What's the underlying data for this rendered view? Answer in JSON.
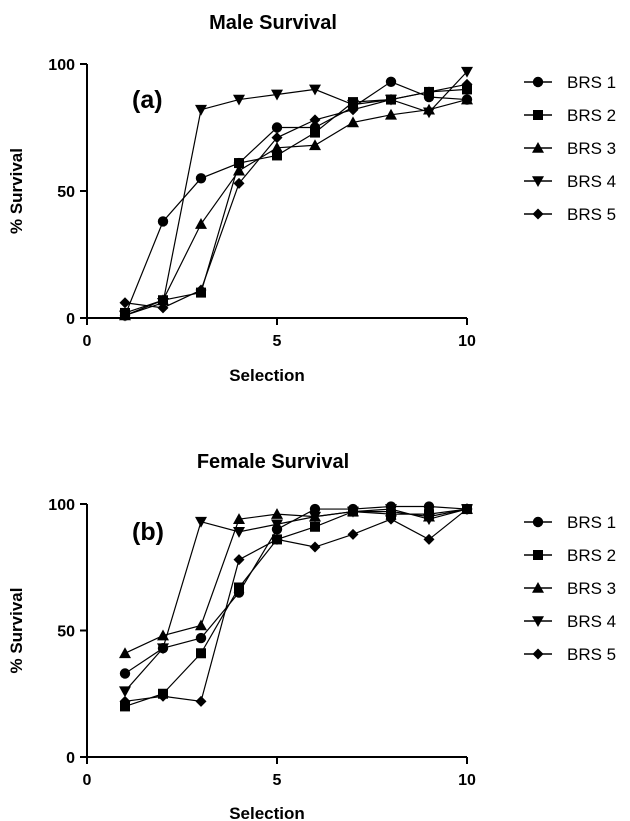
{
  "chart_data": [
    {
      "type": "line",
      "title": "Male Survival",
      "panel_label": "(a)",
      "xlabel": "Selection",
      "ylabel": "% Survival",
      "xlim": [
        0,
        10
      ],
      "ylim": [
        0,
        100
      ],
      "xticks": [
        0,
        5,
        10
      ],
      "yticks": [
        0,
        50,
        100
      ],
      "grid": false,
      "legend_position": "right",
      "x": [
        1,
        2,
        3,
        4,
        5,
        6,
        7,
        8,
        9,
        10
      ],
      "series": [
        {
          "name": "BRS 1",
          "marker": "circle",
          "values": [
            1,
            38,
            55,
            61,
            75,
            75,
            83,
            93,
            87,
            86
          ]
        },
        {
          "name": "BRS 2",
          "marker": "square",
          "values": [
            2,
            7,
            10,
            61,
            64,
            73,
            85,
            86,
            89,
            90
          ]
        },
        {
          "name": "BRS 3",
          "marker": "triangle-up",
          "values": [
            1,
            7,
            37,
            58,
            67,
            68,
            77,
            80,
            82,
            86
          ]
        },
        {
          "name": "BRS 4",
          "marker": "triangle-down",
          "values": [
            1,
            6,
            82,
            86,
            88,
            90,
            84,
            86,
            81,
            97
          ]
        },
        {
          "name": "BRS 5",
          "marker": "diamond",
          "values": [
            6,
            4,
            11,
            53,
            71,
            78,
            82,
            86,
            89,
            92
          ]
        }
      ]
    },
    {
      "type": "line",
      "title": "Female Survival",
      "panel_label": "(b)",
      "xlabel": "Selection",
      "ylabel": "% Survival",
      "xlim": [
        0,
        10
      ],
      "ylim": [
        0,
        100
      ],
      "xticks": [
        0,
        5,
        10
      ],
      "yticks": [
        0,
        50,
        100
      ],
      "grid": false,
      "legend_position": "right",
      "x": [
        1,
        2,
        3,
        4,
        5,
        6,
        7,
        8,
        9,
        10
      ],
      "series": [
        {
          "name": "BRS 1",
          "marker": "circle",
          "values": [
            33,
            43,
            47,
            65,
            90,
            98,
            98,
            99,
            99,
            98
          ]
        },
        {
          "name": "BRS 2",
          "marker": "square",
          "values": [
            20,
            25,
            41,
            67,
            86,
            91,
            97,
            96,
            96,
            98
          ]
        },
        {
          "name": "BRS 3",
          "marker": "triangle-up",
          "values": [
            41,
            48,
            52,
            94,
            96,
            95,
            97,
            97,
            95,
            98
          ]
        },
        {
          "name": "BRS 4",
          "marker": "triangle-down",
          "values": [
            26,
            43,
            93,
            89,
            92,
            95,
            97,
            98,
            94,
            98
          ]
        },
        {
          "name": "BRS 5",
          "marker": "diamond",
          "values": [
            22,
            24,
            22,
            78,
            86,
            83,
            88,
            94,
            86,
            98
          ]
        }
      ]
    }
  ]
}
